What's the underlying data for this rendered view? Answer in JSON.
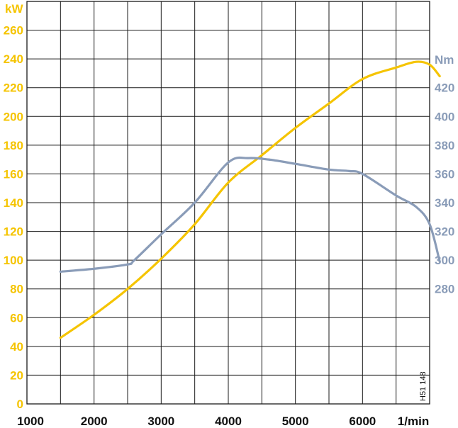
{
  "chart_data": {
    "type": "line",
    "code": "H51 148",
    "x_unit_label": "1/min",
    "x_ticks": [
      "1000",
      "2000",
      "3000",
      "4000",
      "5000",
      "6000"
    ],
    "x_range": [
      1000,
      7000
    ],
    "y_left": {
      "unit_label": "kW",
      "ticks": [
        "0",
        "20",
        "40",
        "60",
        "80",
        "100",
        "120",
        "140",
        "160",
        "180",
        "200",
        "220",
        "240",
        "260"
      ],
      "range": [
        0,
        280
      ],
      "color": "#f5c400"
    },
    "y_right": {
      "unit_label": "Nm",
      "ticks": [
        "280",
        "300",
        "320",
        "340",
        "360",
        "380",
        "400",
        "420"
      ],
      "range": [
        200,
        480
      ],
      "color": "#8a9cb8"
    },
    "grid": true,
    "series": [
      {
        "axis": "left",
        "color": "#f5c400",
        "x": [
          1500,
          2000,
          2500,
          3000,
          3500,
          4000,
          4500,
          5000,
          5500,
          6000,
          6500,
          6800,
          7000,
          7150
        ],
        "y": [
          46,
          62,
          80,
          101,
          125,
          154,
          173,
          192,
          209,
          226,
          234,
          238,
          236,
          228
        ]
      },
      {
        "axis": "right",
        "color": "#8a9cb8",
        "x": [
          1500,
          2000,
          2500,
          2600,
          3000,
          3500,
          4000,
          4300,
          4600,
          5000,
          5500,
          5800,
          6000,
          6500,
          6800,
          7000,
          7150
        ],
        "y": [
          292,
          294,
          297,
          300,
          318,
          340,
          368,
          371,
          370,
          367,
          363,
          362,
          360,
          345,
          337,
          325,
          299
        ]
      }
    ]
  }
}
